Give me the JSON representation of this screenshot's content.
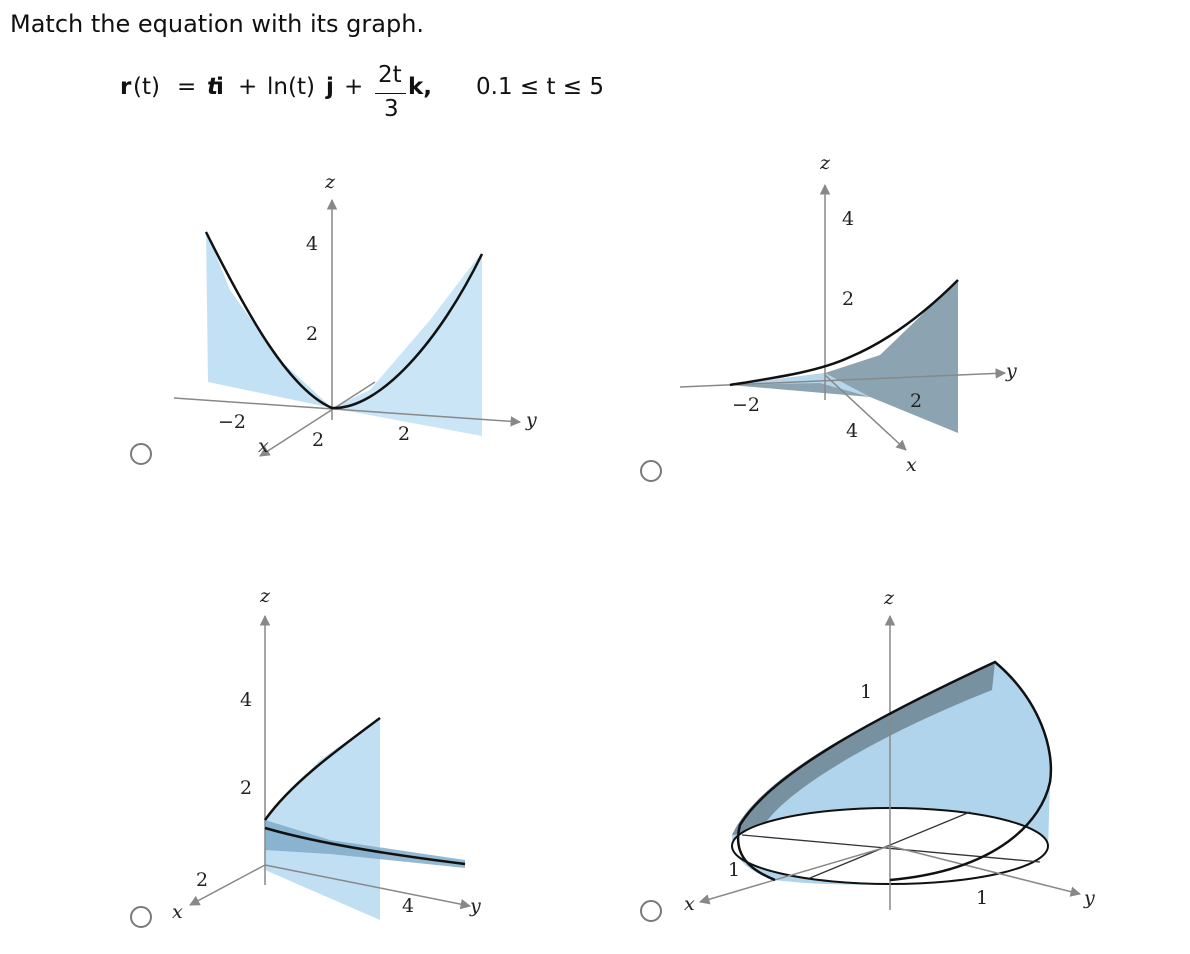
{
  "prompt": "Match the equation with its graph.",
  "equation": {
    "r": "r",
    "t_paren": "(t)",
    "equals": "=",
    "t1": "t",
    "i": "i",
    "plus1": "+",
    "ln": "ln(t)",
    "j": "j",
    "plus2": "+",
    "num": "2t",
    "den": "3",
    "k": "k,",
    "range": "0.1 ≤ t ≤ 5"
  },
  "options": [
    {
      "axis_labels": {
        "z": "z",
        "x": "x",
        "y": "y"
      },
      "ticks": {
        "z4": "4",
        "z2": "2",
        "y_neg2": "−2",
        "x2": "2",
        "y2": "2"
      }
    },
    {
      "axis_labels": {
        "z": "z",
        "x": "x",
        "y": "y"
      },
      "ticks": {
        "z4": "4",
        "z2": "2",
        "y_neg2": "−2",
        "y2": "2",
        "x4": "4"
      }
    },
    {
      "axis_labels": {
        "z": "z",
        "x": "x",
        "y": "y"
      },
      "ticks": {
        "z4": "4",
        "z2": "2",
        "x2": "2",
        "y4": "4"
      }
    },
    {
      "axis_labels": {
        "z": "z",
        "x": "x",
        "y": "y"
      },
      "ticks": {
        "z1": "1",
        "x1": "1",
        "y1": "1"
      }
    }
  ],
  "colors": {
    "surface_fill": "#b9dcf2",
    "surface_dark": "#6f8a98",
    "curve": "#111111",
    "axis": "#8a8a8a",
    "radio_border": "#7a7a7a"
  }
}
